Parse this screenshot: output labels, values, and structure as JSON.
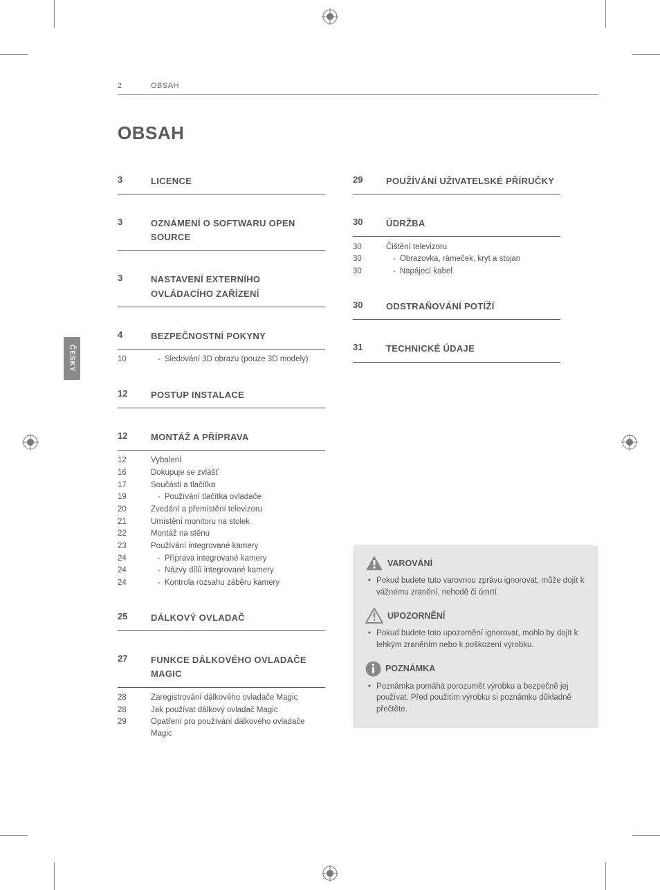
{
  "header": {
    "page_number": "2",
    "section": "OBSAH"
  },
  "title": "OBSAH",
  "side_tab": "ČESKY",
  "columns": {
    "left": [
      {
        "page": "3",
        "title": "LICENCE",
        "items": []
      },
      {
        "page": "3",
        "title": "OZNÁMENÍ O SOFTWARU OPEN SOURCE",
        "items": []
      },
      {
        "page": "3",
        "title": "NASTAVENÍ EXTERNÍHO OVLÁDACÍHO ZAŘÍZENÍ",
        "items": []
      },
      {
        "page": "4",
        "title": "BEZPEČNOSTNÍ POKYNY",
        "items": [
          {
            "page": "10",
            "text": "Sledování 3D obrazu (pouze 3D modely)",
            "indent": true
          }
        ]
      },
      {
        "page": "12",
        "title": "POSTUP INSTALACE",
        "items": []
      },
      {
        "page": "12",
        "title": "MONTÁŽ A PŘÍPRAVA",
        "items": [
          {
            "page": "12",
            "text": "Vybalení",
            "indent": false
          },
          {
            "page": "16",
            "text": "Dokupuje se zvlášť",
            "indent": false
          },
          {
            "page": "17",
            "text": "Součásti a tlačítka",
            "indent": false
          },
          {
            "page": "19",
            "text": "Používání tlačítka ovladače",
            "indent": true
          },
          {
            "page": "20",
            "text": "Zvedání a přemístění televizoru",
            "indent": false
          },
          {
            "page": "21",
            "text": "Umístění monitoru na stolek",
            "indent": false
          },
          {
            "page": "22",
            "text": "Montáž na stěnu",
            "indent": false
          },
          {
            "page": "23",
            "text": "Používání integrované kamery",
            "indent": false
          },
          {
            "page": "24",
            "text": "Příprava integrované kamery",
            "indent": true
          },
          {
            "page": "24",
            "text": "Názvy dílů integrované kamery",
            "indent": true
          },
          {
            "page": "24",
            "text": "Kontrola rozsahu záběru kamery",
            "indent": true
          }
        ]
      },
      {
        "page": "25",
        "title": "DÁLKOVÝ OVLADAČ",
        "items": []
      },
      {
        "page": "27",
        "title": "FUNKCE DÁLKOVÉHO OVLADAČE MAGIC",
        "items": [
          {
            "page": "28",
            "text": "Zaregistrování dálkového ovladače Magic",
            "indent": false
          },
          {
            "page": "28",
            "text": "Jak používat dálkový ovladač Magic",
            "indent": false
          },
          {
            "page": "29",
            "text": "Opatření pro používání dálkového ovladače Magic",
            "indent": false
          }
        ]
      }
    ],
    "right": [
      {
        "page": "29",
        "title": "POUŽÍVÁNÍ UŽIVATELSKÉ PŘÍRUČKY",
        "items": []
      },
      {
        "page": "30",
        "title": "ÚDRŽBA",
        "items": [
          {
            "page": "30",
            "text": "Čištění televizoru",
            "indent": false
          },
          {
            "page": "30",
            "text": "Obrazovka, rámeček, kryt a stojan",
            "indent": true
          },
          {
            "page": "30",
            "text": "Napájecí kabel",
            "indent": true
          }
        ]
      },
      {
        "page": "30",
        "title": "ODSTRAŇOVÁNÍ POTÍŽÍ",
        "items": []
      },
      {
        "page": "31",
        "title": "TECHNICKÉ ÚDAJE",
        "items": []
      }
    ]
  },
  "notices": [
    {
      "icon": "warn-fill",
      "title": "VAROVÁNÍ",
      "text": "Pokud budete tuto varovnou zprávu ignorovat, může dojít k vážnému zranění, nehodě či úmrtí."
    },
    {
      "icon": "warn-outline",
      "title": "UPOZORNĚNÍ",
      "text": "Pokud budete toto upozornění ignorovat, mohlo by dojít k lehkým zraněním nebo k poškození výrobku."
    },
    {
      "icon": "note",
      "title": "POZNÁMKA",
      "text": "Poznámka pomáhá porozumět výrobku a bezpečně jej používat. Před použitím výrobku si poznámku důkladně přečtěte."
    }
  ]
}
